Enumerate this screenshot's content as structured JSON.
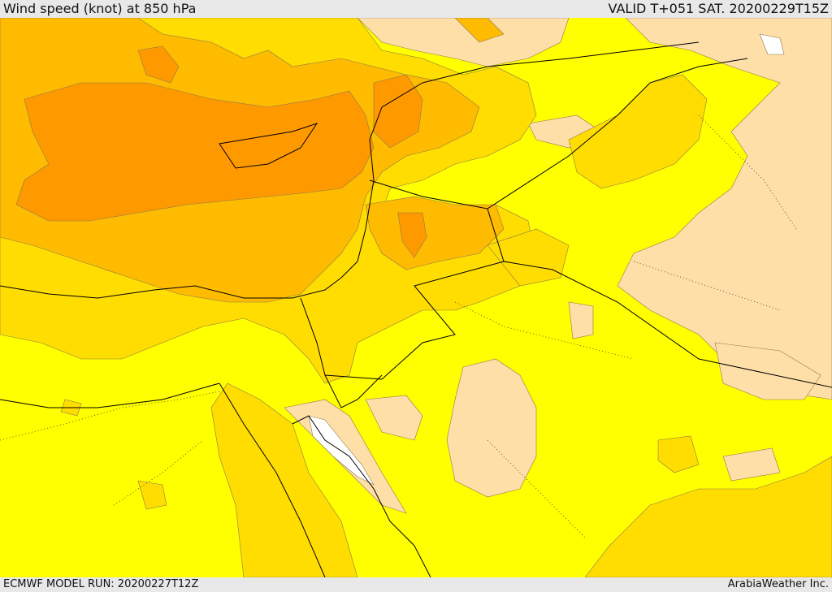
{
  "header": {
    "title": "Wind speed (knot) at 850 hPa",
    "valid": "VALID T+051 SAT. 20200229T15Z"
  },
  "footer": {
    "model_run": "ECMWF MODEL RUN: 20200227T12Z",
    "provider": "ArabiaWeather Inc."
  },
  "colors": {
    "lowest": "#ffffff",
    "band_1": "#ffdfa8",
    "band_2": "#ffff00",
    "band_3": "#ffdd00",
    "band_4": "#ffbb00",
    "band_5": "#ff9900",
    "contour": "#5a4a20",
    "border": "#000000"
  }
}
